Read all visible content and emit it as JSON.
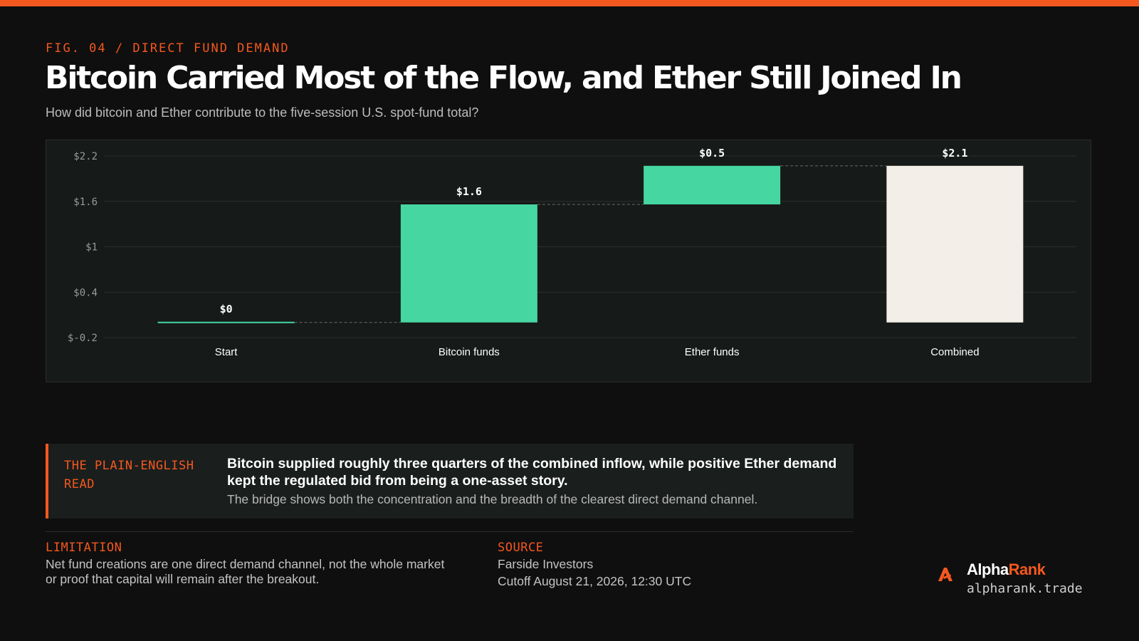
{
  "header": {
    "kicker": "FIG. 04 / DIRECT FUND DEMAND",
    "title": "Bitcoin Carried Most of the Flow, and Ether Still Joined In",
    "subtitle": "How did bitcoin and Ether contribute to the five-session U.S. spot-fund total?"
  },
  "chart_data": {
    "type": "bar",
    "subtype": "waterfall",
    "categories": [
      "Start",
      "Bitcoin funds",
      "Ether funds",
      "Combined"
    ],
    "values": [
      0,
      1.56,
      0.51,
      2.07
    ],
    "bases": [
      0,
      0,
      1.56,
      0
    ],
    "data_labels": [
      "$0",
      "$1.6",
      "$0.5",
      "$2.1"
    ],
    "yticks": [
      "$2.2",
      "$1.6",
      "$1",
      "$0.4",
      "$-0.2"
    ],
    "ytick_values": [
      2.2,
      1.6,
      1.0,
      0.4,
      -0.2
    ],
    "ylim": [
      -0.2,
      2.2
    ],
    "title": "",
    "xlabel": "",
    "ylabel": "",
    "grid": true,
    "colors": {
      "positive": "#46d6a2",
      "total": "#f3eee8",
      "grid": "#2b302e",
      "connector": "#6b6b6b"
    }
  },
  "read": {
    "tag": "THE PLAIN-ENGLISH READ",
    "headline": "Bitcoin supplied roughly three quarters of the combined inflow, while positive Ether demand kept the regulated bid from being a one-asset story.",
    "body": "The bridge shows both the concentration and the breadth of the clearest direct demand channel."
  },
  "limitation": {
    "label": "LIMITATION",
    "line1": "Net fund creations are one direct demand channel, not the whole market",
    "line2": "or proof that capital will remain after the breakout."
  },
  "source": {
    "label": "SOURCE",
    "line1": "Farside Investors",
    "line2": "Cutoff August 21, 2026, 12:30 UTC"
  },
  "brand": {
    "name_part1": "Alpha",
    "name_part2": "Rank",
    "url": "alpharank.trade",
    "icon": "alpharank-logo-icon",
    "accent": "#f4581e"
  }
}
